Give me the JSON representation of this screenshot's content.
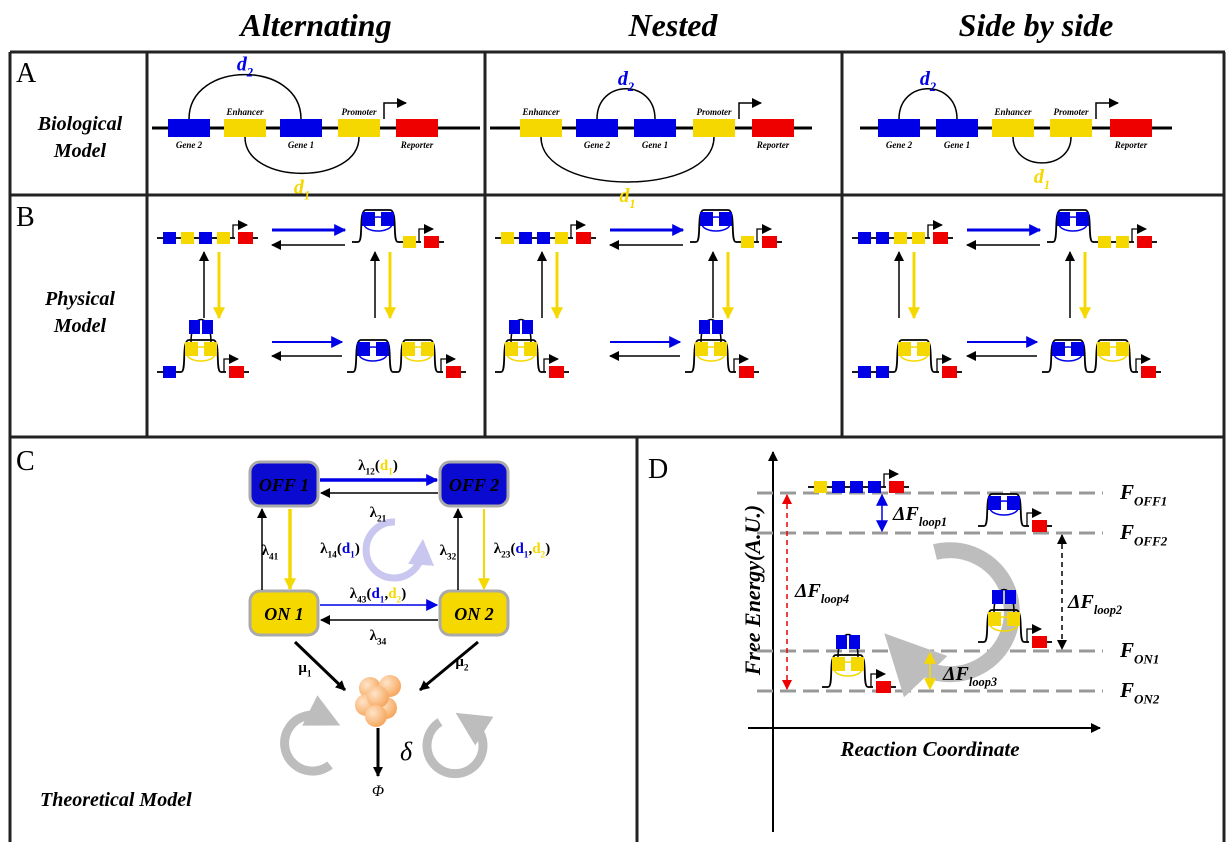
{
  "headers": [
    "Alternating",
    "Nested",
    "Side by side"
  ],
  "panel_a": {
    "label": "A",
    "row_label": [
      "Biological",
      "Model"
    ],
    "columns": [
      {
        "elements": [
          "Gene 2",
          "Enhancer",
          "Gene 1",
          "Promoter",
          "Reporter"
        ],
        "top_loop": [
          {
            "t": "d",
            "color": "#0000e6"
          },
          {
            "t": "2",
            "sub": true,
            "color": "#0000e6"
          }
        ],
        "bottom_loop": [
          {
            "t": "d",
            "color": "#f5d800"
          },
          {
            "t": "1",
            "sub": true,
            "color": "#f5d800"
          }
        ]
      },
      {
        "elements": [
          "Enhancer",
          "Gene 2",
          "Gene 1",
          "Promoter",
          "Reporter"
        ],
        "top_loop": [
          {
            "t": "d",
            "color": "#0000e6"
          },
          {
            "t": "2",
            "sub": true,
            "color": "#0000e6"
          }
        ],
        "bottom_loop": [
          {
            "t": "d",
            "color": "#f5d800"
          },
          {
            "t": "1",
            "sub": true,
            "color": "#f5d800"
          }
        ]
      },
      {
        "elements": [
          "Gene 2",
          "Gene 1",
          "Enhancer",
          "Promoter",
          "Reporter"
        ],
        "top_loop": [
          {
            "t": "d",
            "color": "#0000e6"
          },
          {
            "t": "2",
            "sub": true,
            "color": "#0000e6"
          }
        ],
        "bottom_loop": [
          {
            "t": "d",
            "color": "#f5d800"
          },
          {
            "t": "1",
            "sub": true,
            "color": "#f5d800"
          }
        ]
      }
    ]
  },
  "panel_b": {
    "label": "B",
    "row_label": [
      "Physical",
      "Model"
    ]
  },
  "panel_c": {
    "label": "C",
    "title": "Theoretical Model",
    "states": [
      "OFF 1",
      "OFF 2",
      "ON 1",
      "ON 2"
    ],
    "rates": [
      [
        {
          "t": "λ"
        },
        {
          "t": "12",
          "sub": true
        },
        {
          "t": "("
        },
        {
          "t": "d",
          "color": "#f5d800"
        },
        {
          "t": "1",
          "sub": true,
          "color": "#f5d800"
        },
        {
          "t": ")"
        }
      ],
      [
        {
          "t": "λ"
        },
        {
          "t": "21",
          "sub": true
        }
      ],
      [
        {
          "t": "λ"
        },
        {
          "t": "41",
          "sub": true
        }
      ],
      [
        {
          "t": "λ"
        },
        {
          "t": "14",
          "sub": true
        },
        {
          "t": "("
        },
        {
          "t": "d",
          "color": "#0000e6"
        },
        {
          "t": "1",
          "sub": true,
          "color": "#0000e6"
        },
        {
          "t": ")"
        }
      ],
      [
        {
          "t": "λ"
        },
        {
          "t": "32",
          "sub": true
        }
      ],
      [
        {
          "t": "λ"
        },
        {
          "t": "23",
          "sub": true
        },
        {
          "t": "("
        },
        {
          "t": "d",
          "color": "#0000e6"
        },
        {
          "t": "1",
          "sub": true,
          "color": "#0000e6"
        },
        {
          "t": ","
        },
        {
          "t": "d",
          "color": "#f5d800"
        },
        {
          "t": "2",
          "sub": true,
          "color": "#f5d800"
        },
        {
          "t": ")"
        }
      ],
      [
        {
          "t": "λ"
        },
        {
          "t": "43",
          "sub": true
        },
        {
          "t": "("
        },
        {
          "t": "d",
          "color": "#0000e6"
        },
        {
          "t": "1",
          "sub": true,
          "color": "#0000e6"
        },
        {
          "t": ","
        },
        {
          "t": "d",
          "color": "#f5d800"
        },
        {
          "t": "2",
          "sub": true,
          "color": "#f5d800"
        },
        {
          "t": ")"
        }
      ],
      [
        {
          "t": "λ"
        },
        {
          "t": "34",
          "sub": true
        }
      ],
      [
        {
          "t": "μ"
        },
        {
          "t": "1",
          "sub": true
        }
      ],
      [
        {
          "t": "μ"
        },
        {
          "t": "2",
          "sub": true
        }
      ]
    ],
    "delta": "δ",
    "phi": "Φ"
  },
  "panel_d": {
    "label": "D",
    "y_label": "Free Energy(A.U.)",
    "x_label": "Reaction Coordinate",
    "levels": [
      [
        {
          "t": "F"
        },
        {
          "t": "OFF1",
          "sub": true
        }
      ],
      [
        {
          "t": "F"
        },
        {
          "t": "OFF2",
          "sub": true
        }
      ],
      [
        {
          "t": "F"
        },
        {
          "t": "ON1",
          "sub": true
        }
      ],
      [
        {
          "t": "F"
        },
        {
          "t": "ON2",
          "sub": true
        }
      ]
    ],
    "deltas": [
      [
        {
          "t": "ΔF"
        },
        {
          "t": "loop1",
          "sub": true
        }
      ],
      [
        {
          "t": "ΔF"
        },
        {
          "t": "loop2",
          "sub": true
        }
      ],
      [
        {
          "t": "ΔF"
        },
        {
          "t": "loop3",
          "sub": true
        }
      ],
      [
        {
          "t": "ΔF"
        },
        {
          "t": "loop4",
          "sub": true
        }
      ]
    ]
  }
}
